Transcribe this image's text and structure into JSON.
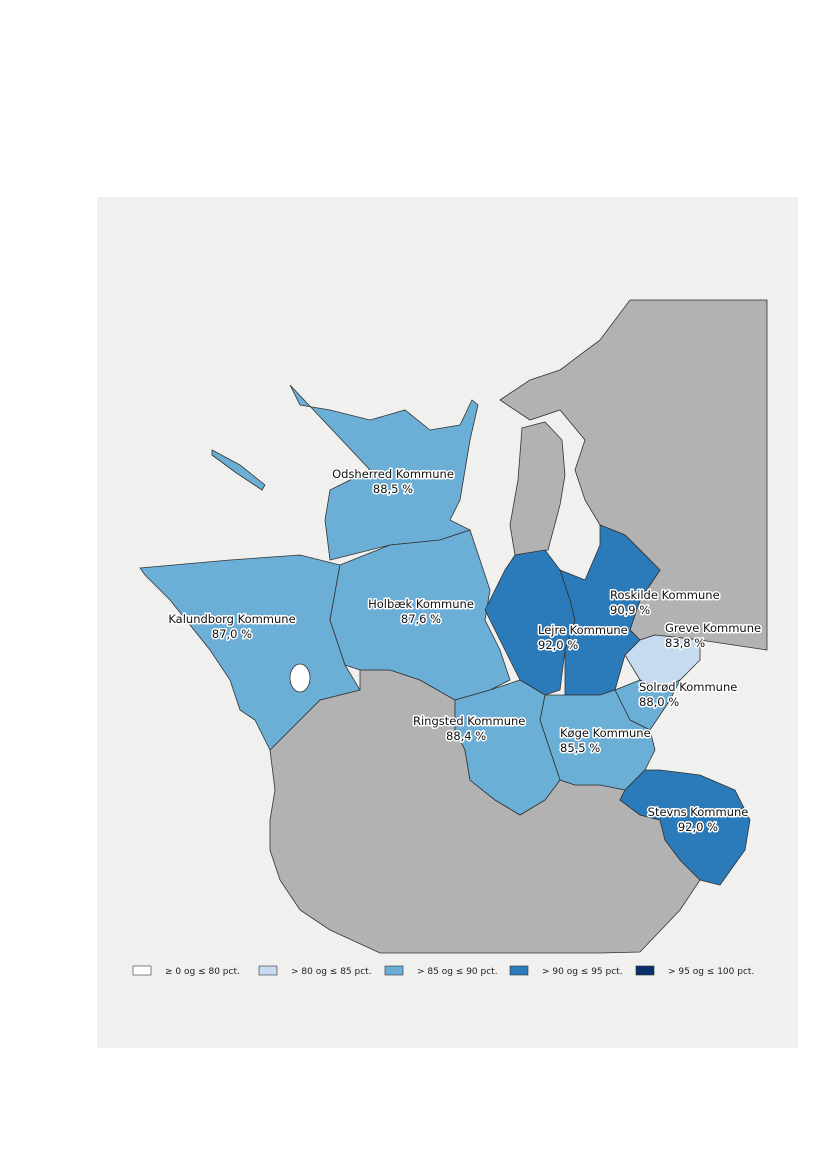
{
  "regions": [
    {
      "name": "Odsherred Kommune",
      "value": "88,5 %"
    },
    {
      "name": "Kalundborg Kommune",
      "value": "87,0 %"
    },
    {
      "name": "Holbæk Kommune",
      "value": "87,6 %"
    },
    {
      "name": "Roskilde Kommune",
      "value": "90,9 %"
    },
    {
      "name": "Lejre Kommune",
      "value": "92,0 %"
    },
    {
      "name": "Greve Kommune",
      "value": "83,8 %"
    },
    {
      "name": "Solrød Kommune",
      "value": "88,0 %"
    },
    {
      "name": "Ringsted Kommune",
      "value": "88,4 %"
    },
    {
      "name": "Køge Kommune",
      "value": "85,5 %"
    },
    {
      "name": "Stevns Kommune",
      "value": "92,0 %"
    }
  ],
  "legend": [
    "≥ 0 og ≤ 80 pct.",
    "> 80 og ≤ 85 pct.",
    "> 85 og ≤ 90 pct.",
    "> 90 og ≤ 95 pct.",
    "> 95 og ≤ 100 pct."
  ]
}
